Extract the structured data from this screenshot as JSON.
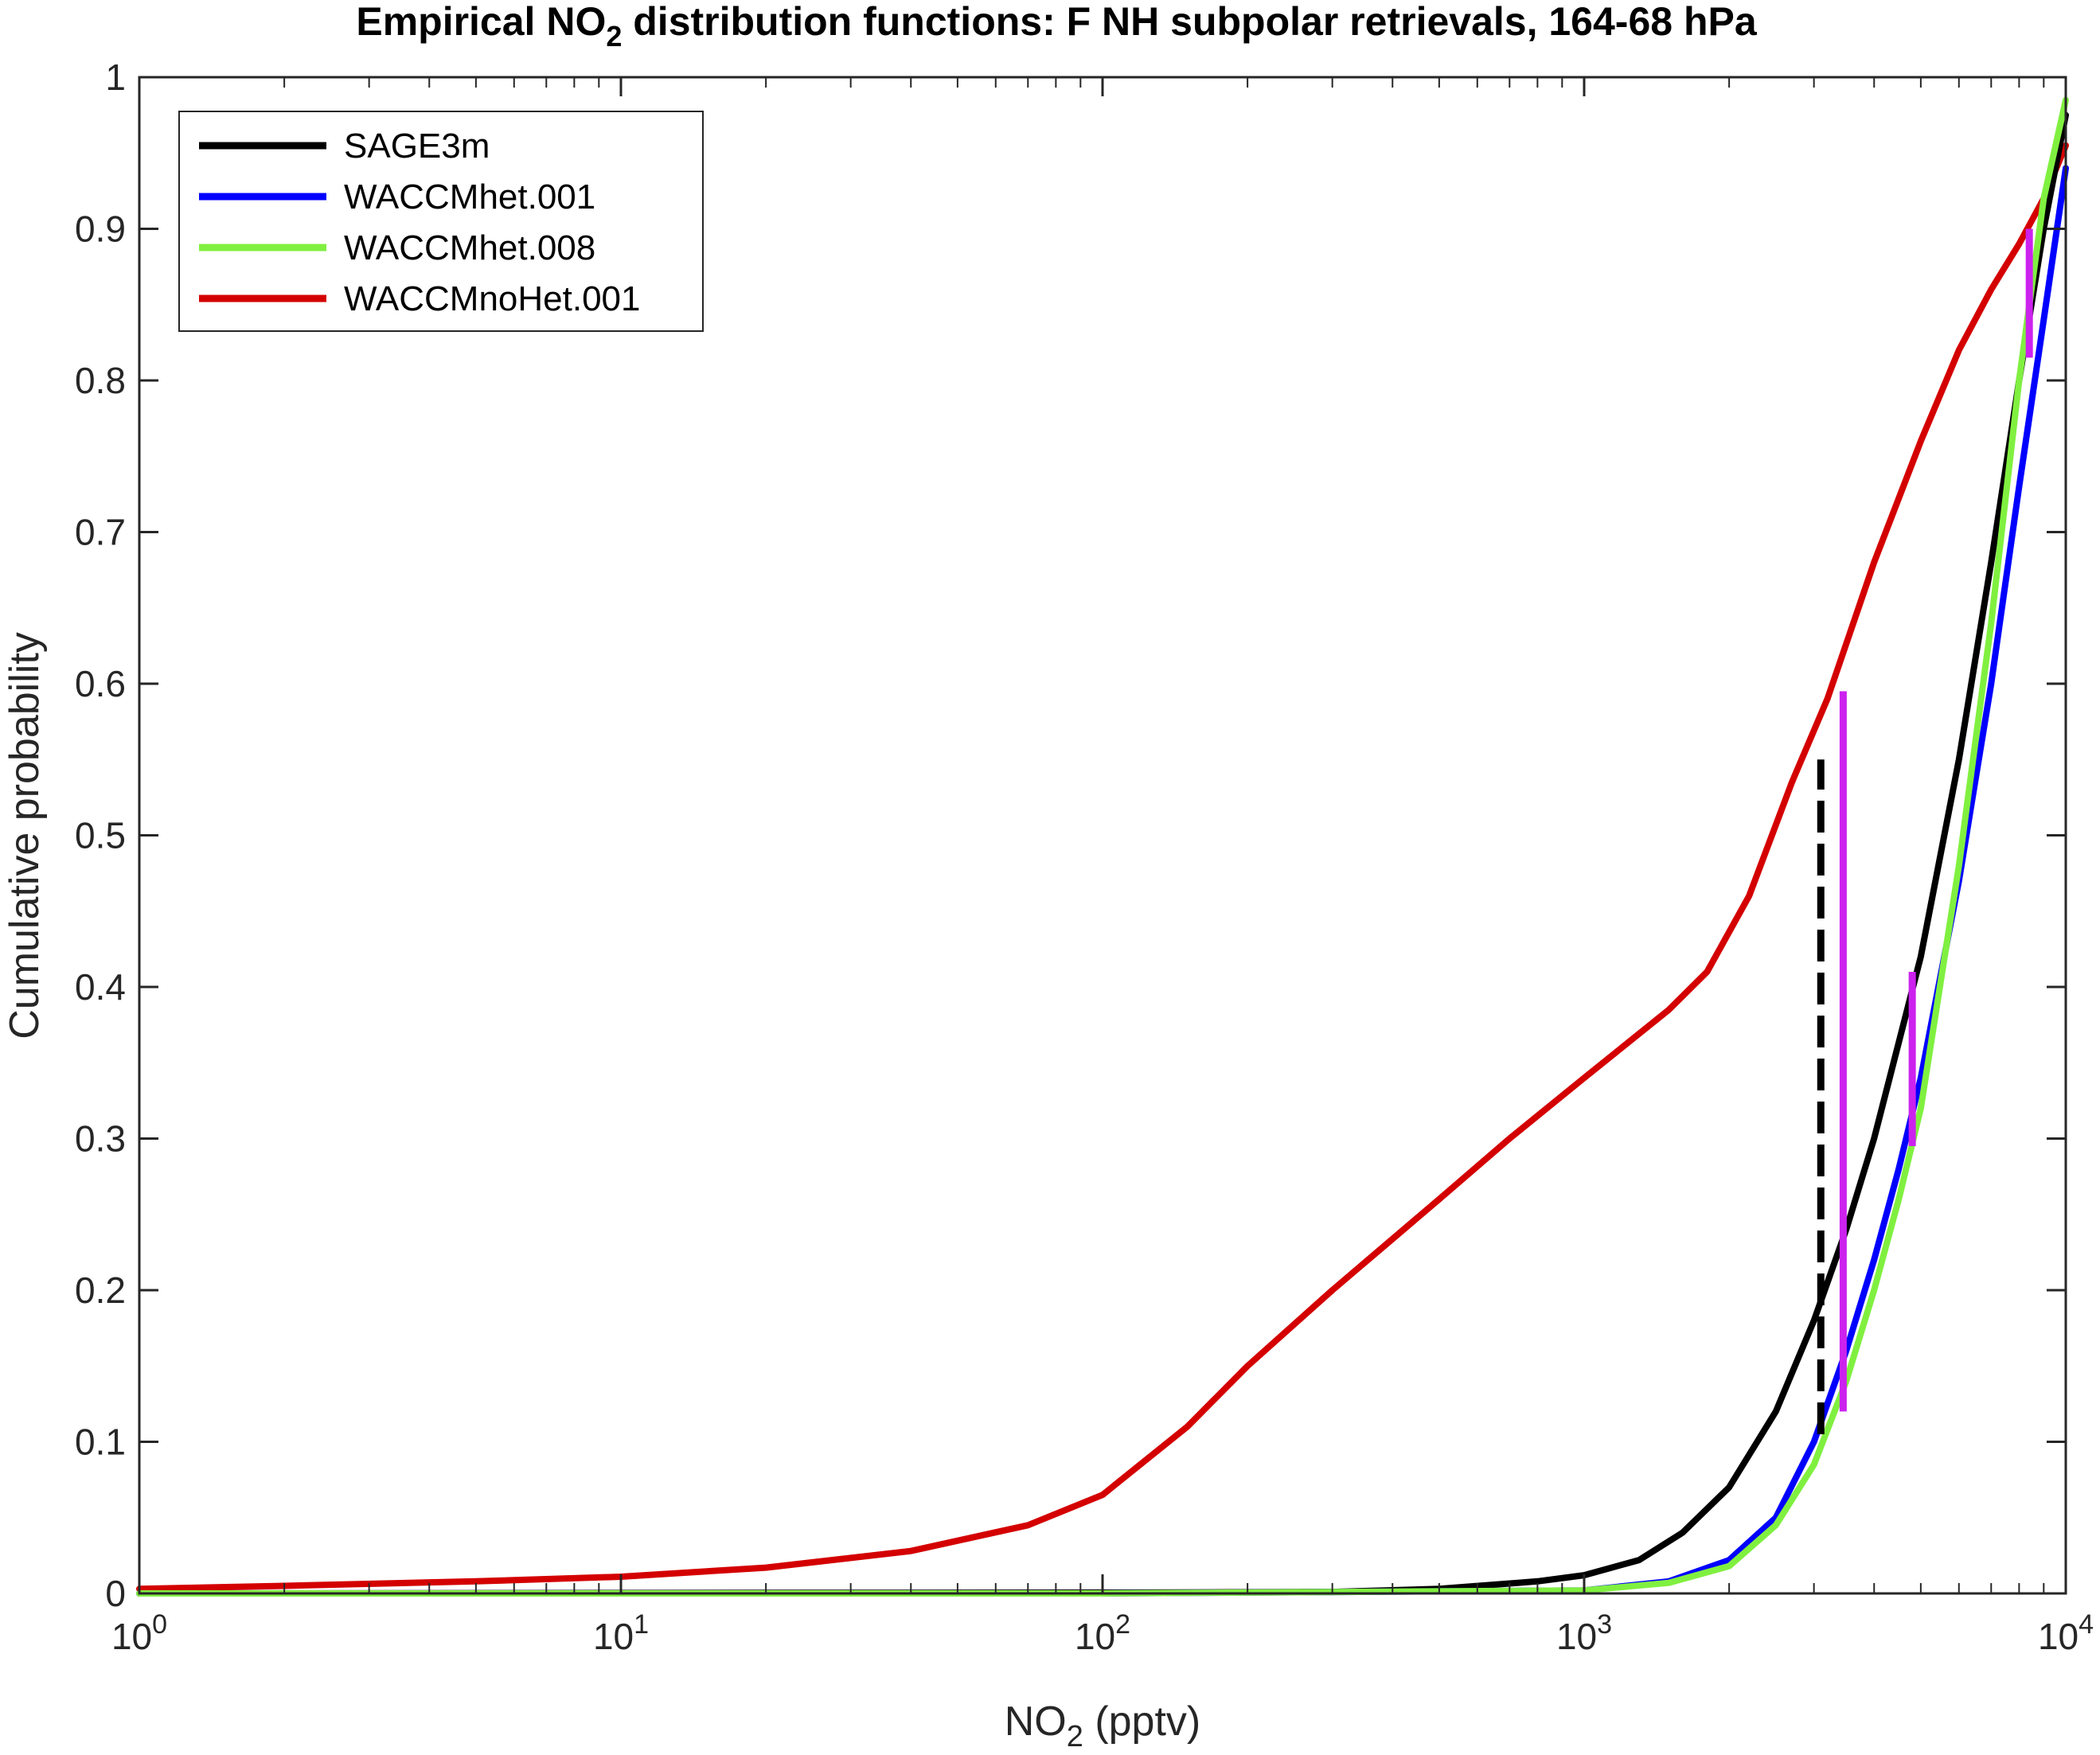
{
  "chart_data": {
    "type": "line",
    "title": {
      "pre": "Empirical NO",
      "sub": "2",
      "post": " distribution functions: F NH subpolar retrievals, 164-68 hPa"
    },
    "xlabel": {
      "pre": "NO",
      "sub": "2",
      "post": " (pptv)"
    },
    "ylabel": "Cumulative probability",
    "xscale": "log",
    "xlim": [
      1,
      10000
    ],
    "ylim": [
      0,
      1
    ],
    "xticks": [
      {
        "value": 1,
        "base": "10",
        "exp": "0"
      },
      {
        "value": 10,
        "base": "10",
        "exp": "1"
      },
      {
        "value": 100,
        "base": "10",
        "exp": "2"
      },
      {
        "value": 1000,
        "base": "10",
        "exp": "3"
      },
      {
        "value": 10000,
        "base": "10",
        "exp": "4"
      }
    ],
    "yticks": [
      {
        "value": 0,
        "label": "0"
      },
      {
        "value": 0.1,
        "label": "0.1"
      },
      {
        "value": 0.2,
        "label": "0.2"
      },
      {
        "value": 0.3,
        "label": "0.3"
      },
      {
        "value": 0.4,
        "label": "0.4"
      },
      {
        "value": 0.5,
        "label": "0.5"
      },
      {
        "value": 0.6,
        "label": "0.6"
      },
      {
        "value": 0.7,
        "label": "0.7"
      },
      {
        "value": 0.8,
        "label": "0.8"
      },
      {
        "value": 0.9,
        "label": "0.9"
      },
      {
        "value": 1,
        "label": "1"
      }
    ],
    "grid": false,
    "legend_position": "top-left",
    "series": [
      {
        "name": "WACCMnoHet.001",
        "color": "#d40000",
        "x": [
          1,
          2,
          5,
          10,
          20,
          40,
          70,
          100,
          150,
          200,
          300,
          500,
          700,
          1000,
          1500,
          1800,
          2200,
          2700,
          3200,
          4000,
          5000,
          6000,
          7000,
          8000,
          9000,
          10000
        ],
        "y": [
          0.003,
          0.005,
          0.008,
          0.011,
          0.017,
          0.028,
          0.045,
          0.065,
          0.11,
          0.15,
          0.2,
          0.26,
          0.3,
          0.34,
          0.385,
          0.41,
          0.46,
          0.535,
          0.59,
          0.68,
          0.76,
          0.82,
          0.86,
          0.89,
          0.92,
          0.955
        ]
      },
      {
        "name": "SAGE3m",
        "color": "#000000",
        "x": [
          1,
          100,
          300,
          500,
          800,
          1000,
          1300,
          1600,
          2000,
          2500,
          3000,
          3500,
          4000,
          5000,
          6000,
          7000,
          8000,
          9000,
          10000
        ],
        "y": [
          0,
          0.0005,
          0.001,
          0.003,
          0.008,
          0.012,
          0.022,
          0.04,
          0.07,
          0.12,
          0.18,
          0.24,
          0.3,
          0.42,
          0.55,
          0.68,
          0.8,
          0.9,
          0.975
        ]
      },
      {
        "name": "WACCMhet.001",
        "color": "#0000ff",
        "x": [
          1,
          100,
          1000,
          1500,
          2000,
          2500,
          3000,
          3500,
          4000,
          4500,
          5000,
          6000,
          7000,
          8000,
          9000,
          10000
        ],
        "y": [
          0,
          0,
          0.002,
          0.008,
          0.022,
          0.05,
          0.1,
          0.16,
          0.22,
          0.28,
          0.34,
          0.47,
          0.6,
          0.73,
          0.84,
          0.94
        ]
      },
      {
        "name": "WACCMhet.008",
        "color": "#80f040",
        "x": [
          1,
          100,
          1000,
          1500,
          2000,
          2500,
          3000,
          3500,
          4000,
          4500,
          5000,
          6000,
          7000,
          8000,
          9000,
          10000
        ],
        "y": [
          0,
          0,
          0.002,
          0.007,
          0.018,
          0.045,
          0.085,
          0.14,
          0.2,
          0.26,
          0.32,
          0.48,
          0.64,
          0.8,
          0.92,
          0.985
        ]
      }
    ],
    "markers": [
      {
        "color": "#000000",
        "style": "dashed",
        "x": 3100,
        "y1": 0.105,
        "y2": 0.55
      },
      {
        "color": "#cc22ee",
        "style": "solid",
        "x": 3450,
        "y1": 0.12,
        "y2": 0.595
      },
      {
        "color": "#cc22ee",
        "style": "solid",
        "x": 4800,
        "y1": 0.295,
        "y2": 0.41
      },
      {
        "color": "#cc22ee",
        "style": "solid",
        "x": 8400,
        "y1": 0.815,
        "y2": 0.9
      }
    ]
  }
}
